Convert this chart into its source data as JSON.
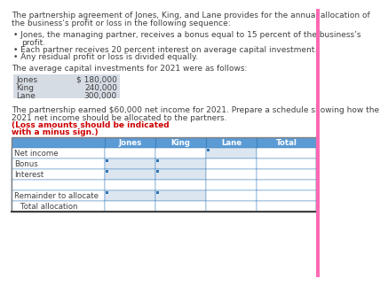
{
  "title_line1": "The partnership agreement of Jones, King, and Lane provides for the annual allocation of",
  "title_line2": "the business’s profit or loss in the following sequence:",
  "bullet1_line1": "Jones, the managing partner, receives a bonus equal to 15 percent of the business’s",
  "bullet1_line2": "profit.",
  "bullet2": "Each partner receives 20 percent interest on average capital investment.",
  "bullet3": "Any residual profit or loss is divided equally.",
  "capital_label": "The average capital investments for 2021 were as follows:",
  "capital_data": [
    [
      "Jones",
      "$ 180,000"
    ],
    [
      "King",
      "240,000"
    ],
    [
      "Lane",
      "300,000"
    ]
  ],
  "bottom_black": "The partnership earned $60,000 net income for 2021. Prepare a schedule showing how the",
  "bottom_black2": "2021 net income should be allocated to the partners. ",
  "bottom_red": "(Loss amounts should be indicated",
  "bottom_red2": "with a minus sign.)",
  "table_headers": [
    "",
    "Jones",
    "King",
    "Lane",
    "Total"
  ],
  "table_rows": [
    [
      "Net income",
      false,
      false,
      false,
      true
    ],
    [
      "Bonus",
      true,
      true,
      true,
      false
    ],
    [
      "Interest",
      true,
      true,
      true,
      false
    ],
    [
      "",
      false,
      false,
      false,
      false
    ],
    [
      "Remainder to allocate",
      true,
      true,
      true,
      false
    ],
    [
      "  Total allocation",
      false,
      false,
      false,
      false
    ]
  ],
  "header_bg": "#5b9bd5",
  "header_text_color": "#ffffff",
  "input_bg": "#dce6f1",
  "plain_bg": "#ffffff",
  "capital_bg": "#d6dce4",
  "text_color": "#404040",
  "border_color": "#2e75b6",
  "red_color": "#cc0000",
  "outer_border": "#c0c0c0",
  "fs_main": 6.5,
  "fs_table": 6.2
}
